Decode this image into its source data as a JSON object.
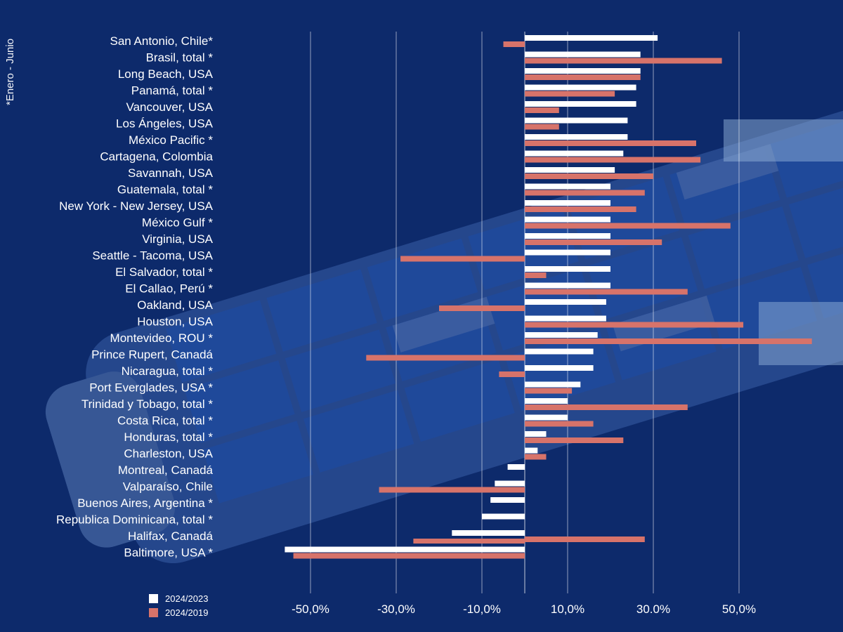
{
  "note": "*Enero - Junio",
  "colors": {
    "background": "#0d2a6b",
    "series_2024_2023": "#ffffff",
    "series_2024_2019": "#d7736a",
    "grid": "#ffffff"
  },
  "chart_data": {
    "type": "bar",
    "orientation": "horizontal",
    "title": "",
    "xlabel": "",
    "ylabel": "",
    "xlim": [
      -0.6,
      0.6
    ],
    "xticks": [
      {
        "value": -0.5,
        "label": "-50,0%"
      },
      {
        "value": -0.3,
        "label": "-30,0%"
      },
      {
        "value": -0.1,
        "label": "-10,0%"
      },
      {
        "value": 0.1,
        "label": "10,0%"
      },
      {
        "value": 0.3,
        "label": "30.0%"
      },
      {
        "value": 0.5,
        "label": "50,0%"
      }
    ],
    "grid": true,
    "legend_position": "bottom-left",
    "categories": [
      "San Antonio, Chile*",
      "Brasil, total *",
      "Long Beach, USA",
      "Panamá, total *",
      "Vancouver, USA",
      "Los Ángeles, USA",
      "México Pacific *",
      "Cartagena, Colombia",
      "Savannah, USA",
      "Guatemala, total *",
      "New York - New Jersey, USA",
      "México Gulf *",
      "Virginia, USA",
      "Seattle - Tacoma, USA",
      "El Salvador, total *",
      "El Callao, Perú *",
      "Oakland, USA",
      "Houston, USA",
      "Montevideo, ROU *",
      "Prince Rupert, Canadá",
      "Nicaragua, total *",
      "Port Everglades, USA *",
      "Trinidad y Tobago, total *",
      "Costa Rica, total *",
      "Honduras, total *",
      "Charleston, USA",
      "Montreal, Canadá",
      "Valparaíso, Chile",
      "Buenos Aires, Argentina *",
      "Republica Dominicana, total *",
      "Halifax, Canadá",
      "Baltimore, USA *"
    ],
    "series": [
      {
        "name": "2024/2023",
        "values": [
          0.31,
          0.27,
          0.27,
          0.26,
          0.26,
          0.24,
          0.24,
          0.23,
          0.21,
          0.2,
          0.2,
          0.2,
          0.2,
          0.2,
          0.2,
          0.2,
          0.19,
          0.19,
          0.17,
          0.16,
          0.16,
          0.13,
          0.1,
          0.1,
          0.05,
          0.03,
          -0.04,
          -0.07,
          -0.08,
          -0.1,
          -0.17,
          -0.56
        ]
      },
      {
        "name": "2024/2019",
        "values": [
          -0.05,
          0.46,
          0.27,
          0.21,
          0.08,
          0.08,
          0.4,
          0.41,
          0.3,
          0.28,
          0.26,
          0.48,
          0.32,
          -0.29,
          0.05,
          0.38,
          -0.2,
          0.51,
          0.67,
          -0.37,
          -0.06,
          0.11,
          0.38,
          0.16,
          0.23,
          0.05,
          0.0,
          -0.34,
          0.0,
          0.0,
          0.28,
          -0.54
        ]
      }
    ],
    "extra_bars": [
      {
        "category_index": 30,
        "series": "2024/2019",
        "value": -0.26
      }
    ]
  }
}
